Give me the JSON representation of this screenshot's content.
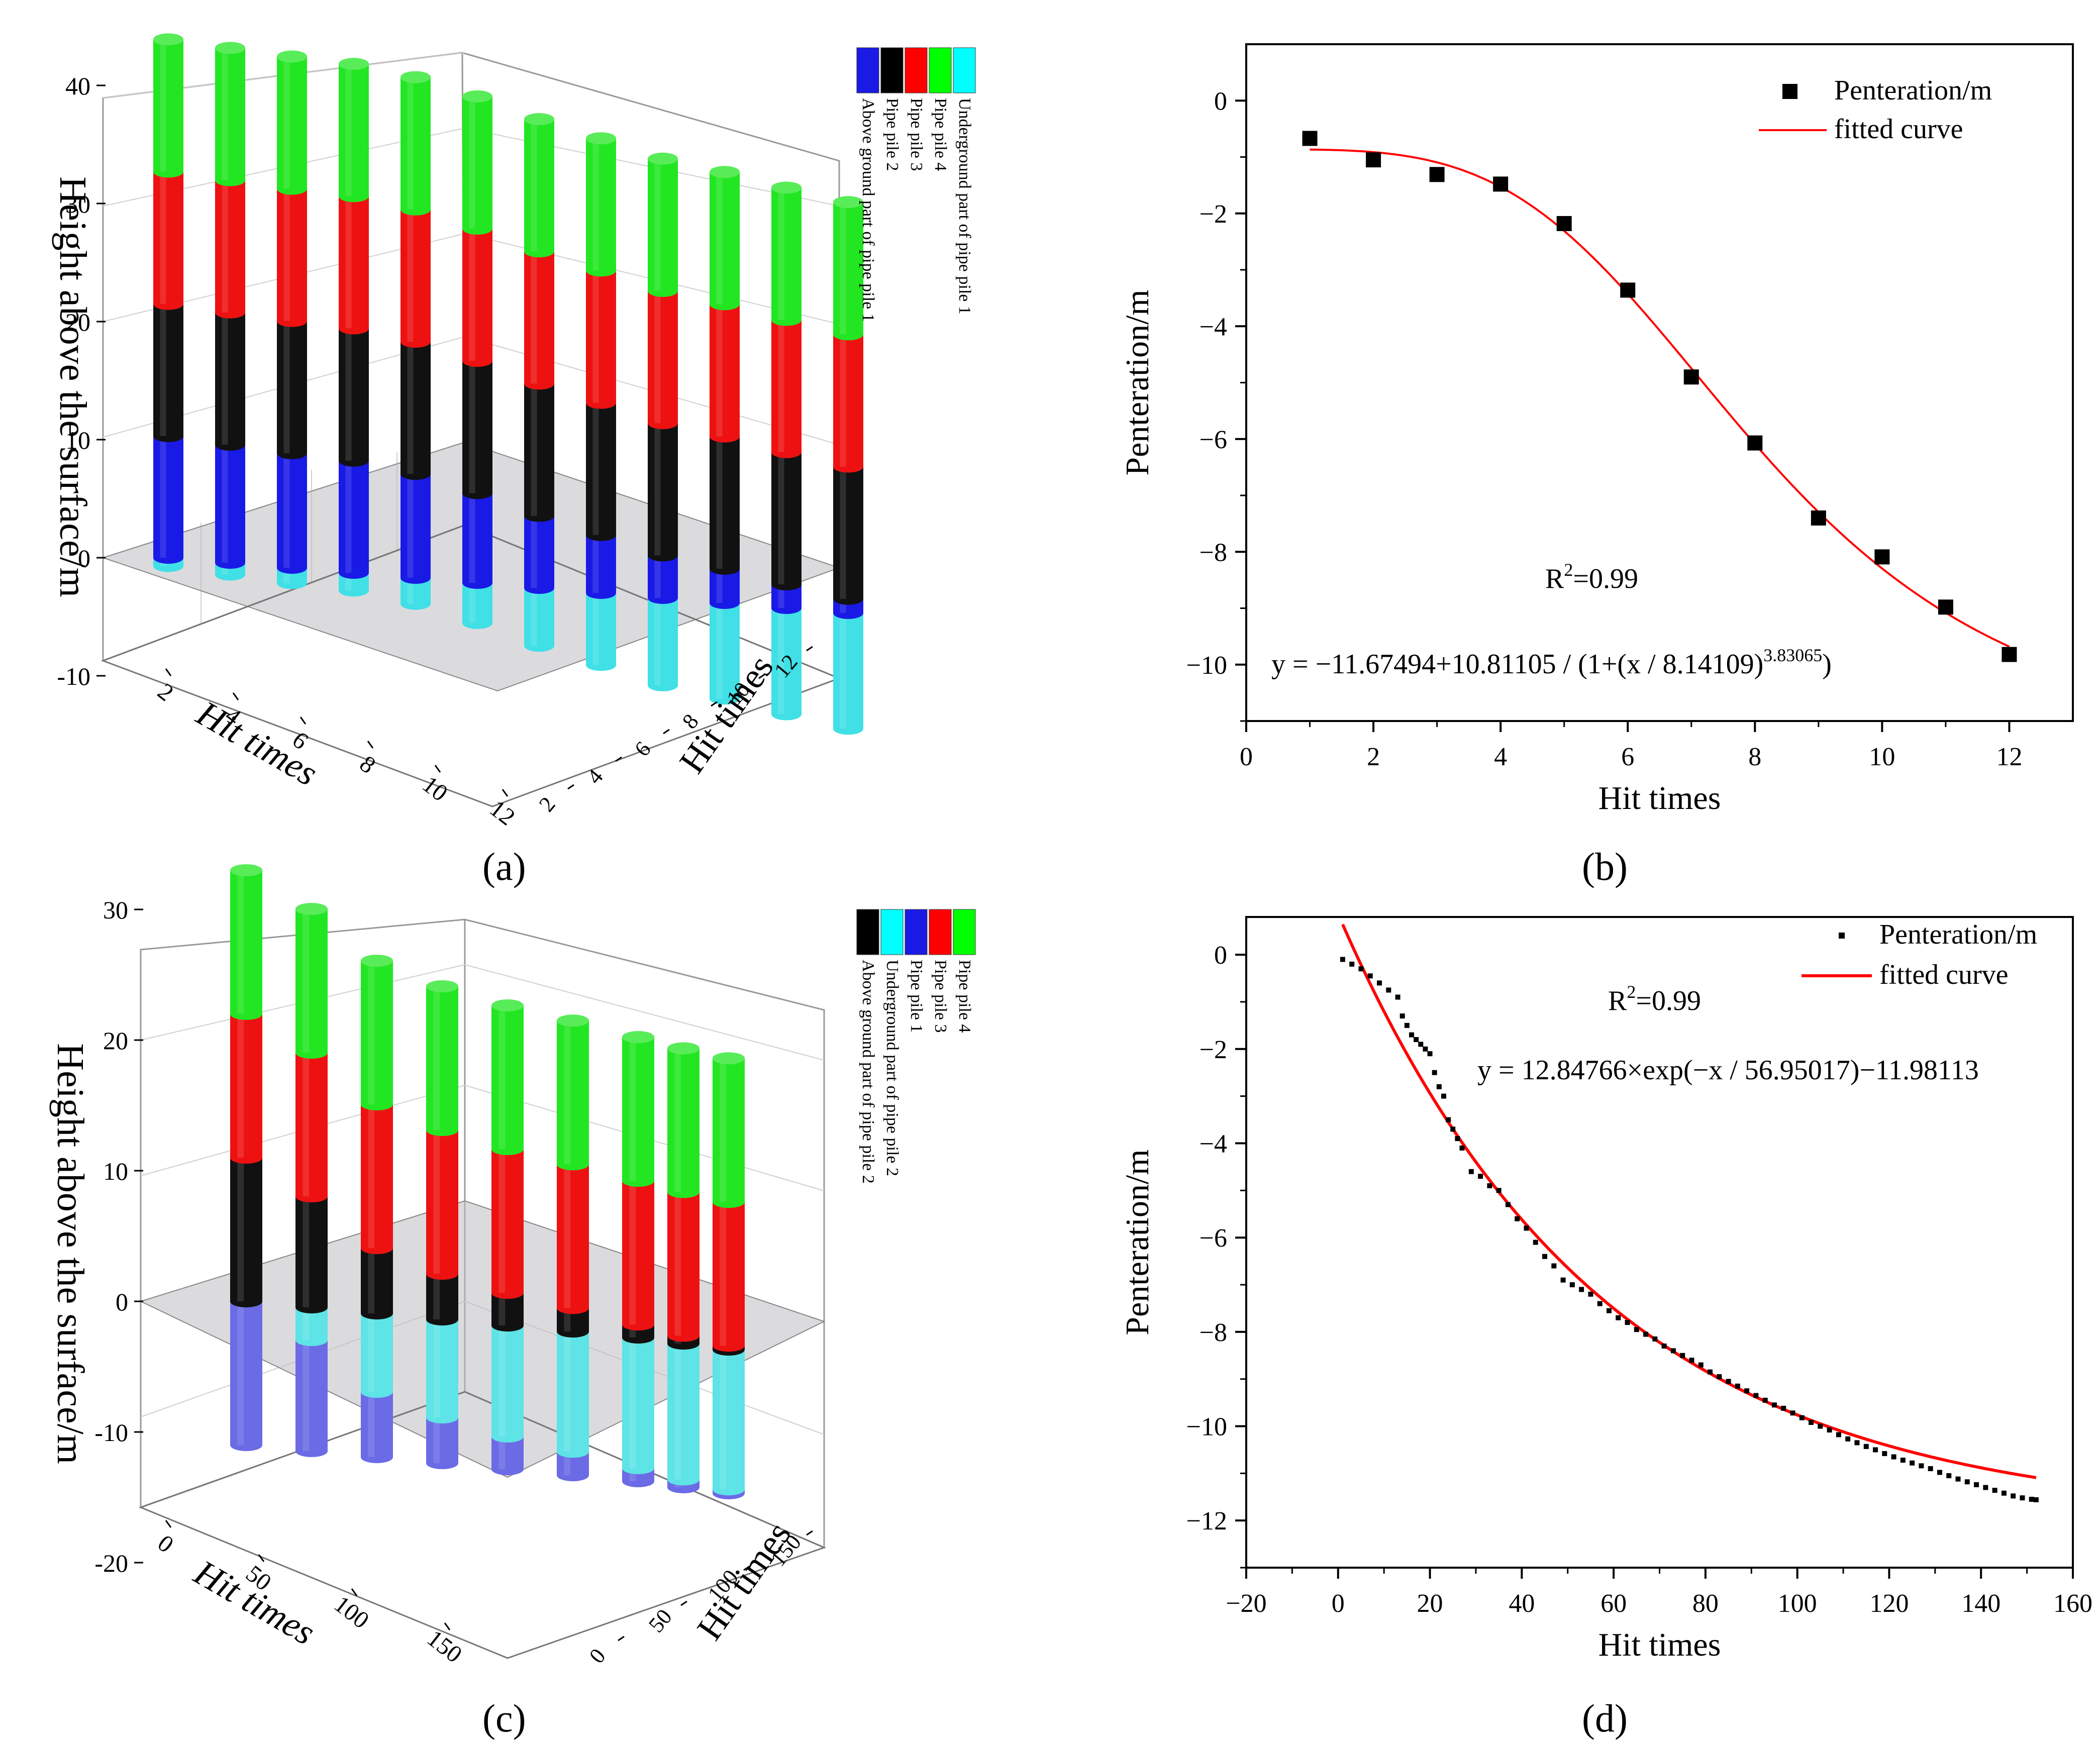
{
  "chart_data": [
    {
      "panel": "a",
      "caption": "(a)",
      "type": "bar3d",
      "ylabel": "Height above the surface/m",
      "xlabel": "Hit times",
      "zlabel": "Hit times",
      "y_ticks": [
        "40",
        "30",
        "20",
        "10",
        "0",
        "-10"
      ],
      "x_ticks": [
        "2",
        "4",
        "6",
        "8",
        "10",
        "12"
      ],
      "z_ticks": [
        "2",
        "4",
        "6",
        "8",
        "10",
        "12"
      ],
      "ylim": [
        -10,
        45
      ],
      "legend": [
        {
          "label": "Above ground part of pipe pile 1",
          "color": "#1a1ae6"
        },
        {
          "label": "Pipe pile 2",
          "color": "#000000"
        },
        {
          "label": "Pipe pile 3",
          "color": "#ff0000"
        },
        {
          "label": "Pipe pile 4",
          "color": "#00ff00"
        },
        {
          "label": "Underground part of pipe pile 1",
          "color": "#00ffff"
        }
      ],
      "hits": [
        1,
        2,
        3,
        4,
        5,
        6,
        7,
        8,
        9,
        10,
        11,
        12
      ],
      "stack_order": [
        "underground",
        "above_ground_pile1",
        "pile2",
        "pile3",
        "pile4"
      ],
      "segments": [
        {
          "underground": -0.7,
          "above": 10.3,
          "pile2": 11.2,
          "pile3": 11.2,
          "pile4": 11.2
        },
        {
          "underground": -1.0,
          "above": 10.0,
          "pile2": 11.2,
          "pile3": 11.2,
          "pile4": 11.2
        },
        {
          "underground": -1.3,
          "above": 9.7,
          "pile2": 11.2,
          "pile3": 11.2,
          "pile4": 11.2
        },
        {
          "underground": -1.5,
          "above": 9.5,
          "pile2": 11.2,
          "pile3": 11.2,
          "pile4": 11.2
        },
        {
          "underground": -2.2,
          "above": 8.8,
          "pile2": 11.2,
          "pile3": 11.2,
          "pile4": 11.2
        },
        {
          "underground": -3.4,
          "above": 7.6,
          "pile2": 11.2,
          "pile3": 11.2,
          "pile4": 11.2
        },
        {
          "underground": -4.9,
          "above": 6.1,
          "pile2": 11.2,
          "pile3": 11.2,
          "pile4": 11.2
        },
        {
          "underground": -6.1,
          "above": 4.9,
          "pile2": 11.2,
          "pile3": 11.2,
          "pile4": 11.2
        },
        {
          "underground": -7.4,
          "above": 3.6,
          "pile2": 11.2,
          "pile3": 11.2,
          "pile4": 11.2
        },
        {
          "underground": -8.1,
          "above": 2.9,
          "pile2": 11.2,
          "pile3": 11.2,
          "pile4": 11.2
        },
        {
          "underground": -9.0,
          "above": 2.0,
          "pile2": 11.2,
          "pile3": 11.2,
          "pile4": 11.2
        },
        {
          "underground": -9.8,
          "above": 1.2,
          "pile2": 11.2,
          "pile3": 11.2,
          "pile4": 11.2
        }
      ]
    },
    {
      "panel": "b",
      "caption": "(b)",
      "type": "scatter",
      "xlabel": "Hit times",
      "ylabel": "Penteration/m",
      "xlim": [
        0,
        13
      ],
      "ylim": [
        -11,
        1
      ],
      "x_ticks": [
        0,
        2,
        4,
        6,
        8,
        10,
        12
      ],
      "y_ticks": [
        0,
        -2,
        -4,
        -6,
        -8,
        -10
      ],
      "x": [
        1,
        2,
        3,
        4,
        5,
        6,
        7,
        8,
        9,
        10,
        11,
        12
      ],
      "y": [
        -0.67,
        -1.05,
        -1.31,
        -1.48,
        -2.18,
        -3.36,
        -4.9,
        -6.07,
        -7.4,
        -8.09,
        -8.98,
        -9.82
      ],
      "fit": {
        "A1": -11.67494,
        "A2": 10.81105,
        "x0": 8.14109,
        "p": 3.83065
      },
      "legend": [
        {
          "label": "Penteration/m",
          "marker": "square"
        },
        {
          "label": "fitted curve",
          "color": "#ff0000"
        }
      ],
      "r2_label": "R",
      "r2_sup": "2",
      "r2_value": "=0.99",
      "equation": "y = −11.67494+10.81105 / (1+(x / 8.14109)",
      "equation_sup": "3.83065",
      "equation_tail": ")"
    },
    {
      "panel": "c",
      "caption": "(c)",
      "type": "bar3d",
      "ylabel": "Height above the surface/m",
      "xlabel": "Hit times",
      "zlabel": "Hit times",
      "y_ticks": [
        "30",
        "20",
        "10",
        "0",
        "-10",
        "-20"
      ],
      "x_ticks": [
        "0",
        "50",
        "100",
        "150"
      ],
      "z_ticks": [
        "0",
        "50",
        "100",
        "150"
      ],
      "ylim": [
        -20,
        35
      ],
      "legend": [
        {
          "label": "Above ground part of pipe pile 2",
          "color": "#000000"
        },
        {
          "label": "Underground part of pipe pile 2",
          "color": "#00ffff"
        },
        {
          "label": "Pipe pile 1",
          "color": "#1a1ae6"
        },
        {
          "label": "Pipe pile 3",
          "color": "#ff0000"
        },
        {
          "label": "Pipe pile 4",
          "color": "#00ff00"
        }
      ],
      "segments": [
        {
          "pile1": -11.0,
          "under2": 0.0,
          "above2": 11.0,
          "pile3": 11.0,
          "pile4": 11.0
        },
        {
          "pile1": -8.5,
          "under2": -2.5,
          "above2": 8.5,
          "pile3": 11.0,
          "pile4": 11.0
        },
        {
          "pile1": -5.0,
          "under2": -6.0,
          "above2": 5.0,
          "pile3": 11.0,
          "pile4": 11.0
        },
        {
          "pile1": -3.5,
          "under2": -7.5,
          "above2": 3.5,
          "pile3": 11.0,
          "pile4": 11.0
        },
        {
          "pile1": -2.5,
          "under2": -8.5,
          "above2": 2.5,
          "pile3": 11.0,
          "pile4": 11.0
        },
        {
          "pile1": -1.8,
          "under2": -9.2,
          "above2": 1.8,
          "pile3": 11.0,
          "pile4": 11.0
        },
        {
          "pile1": -1.0,
          "under2": -10.0,
          "above2": 1.0,
          "pile3": 11.0,
          "pile4": 11.0
        },
        {
          "pile1": -0.6,
          "under2": -10.4,
          "above2": 0.6,
          "pile3": 11.0,
          "pile4": 11.0
        },
        {
          "pile1": -0.3,
          "under2": -10.7,
          "above2": 0.3,
          "pile3": 11.0,
          "pile4": 11.0
        }
      ]
    },
    {
      "panel": "d",
      "caption": "(d)",
      "type": "scatter",
      "xlabel": "Hit times",
      "ylabel": "Penteration/m",
      "xlim": [
        -20,
        160
      ],
      "ylim": [
        -13,
        0.8
      ],
      "x_ticks": [
        -20,
        0,
        20,
        40,
        60,
        80,
        100,
        120,
        140,
        160
      ],
      "y_ticks": [
        0,
        -2,
        -4,
        -6,
        -8,
        -10,
        -12
      ],
      "x_range": [
        1,
        152
      ],
      "data_points": [
        [
          1,
          -0.1
        ],
        [
          3,
          -0.2
        ],
        [
          5,
          -0.3
        ],
        [
          7,
          -0.45
        ],
        [
          9,
          -0.6
        ],
        [
          11,
          -0.75
        ],
        [
          13,
          -0.9
        ],
        [
          14,
          -1.3
        ],
        [
          15,
          -1.5
        ],
        [
          16,
          -1.7
        ],
        [
          17,
          -1.8
        ],
        [
          18,
          -1.9
        ],
        [
          19,
          -2.0
        ],
        [
          20,
          -2.1
        ],
        [
          21,
          -2.5
        ],
        [
          22,
          -2.8
        ],
        [
          23,
          -3.0
        ],
        [
          24,
          -3.5
        ],
        [
          25,
          -3.7
        ],
        [
          26,
          -3.9
        ],
        [
          27,
          -4.1
        ],
        [
          29,
          -4.6
        ],
        [
          31,
          -4.7
        ],
        [
          33,
          -4.9
        ],
        [
          35,
          -5.0
        ],
        [
          37,
          -5.3
        ],
        [
          39,
          -5.6
        ],
        [
          41,
          -5.8
        ],
        [
          43,
          -6.1
        ],
        [
          45,
          -6.4
        ],
        [
          47,
          -6.6
        ],
        [
          49,
          -6.9
        ],
        [
          51,
          -7.0
        ],
        [
          53,
          -7.1
        ],
        [
          55,
          -7.2
        ],
        [
          57,
          -7.4
        ],
        [
          59,
          -7.55
        ],
        [
          61,
          -7.7
        ],
        [
          63,
          -7.8
        ],
        [
          65,
          -7.95
        ],
        [
          67,
          -8.05
        ],
        [
          69,
          -8.15
        ],
        [
          71,
          -8.3
        ],
        [
          73,
          -8.4
        ],
        [
          75,
          -8.5
        ],
        [
          77,
          -8.6
        ],
        [
          79,
          -8.7
        ],
        [
          81,
          -8.85
        ],
        [
          83,
          -8.95
        ],
        [
          85,
          -9.05
        ],
        [
          87,
          -9.15
        ],
        [
          89,
          -9.25
        ],
        [
          91,
          -9.35
        ],
        [
          93,
          -9.45
        ],
        [
          95,
          -9.55
        ],
        [
          97,
          -9.62
        ],
        [
          99,
          -9.72
        ],
        [
          101,
          -9.82
        ],
        [
          103,
          -9.92
        ],
        [
          105,
          -10.0
        ],
        [
          107,
          -10.08
        ],
        [
          109,
          -10.18
        ],
        [
          111,
          -10.27
        ],
        [
          113,
          -10.35
        ],
        [
          115,
          -10.43
        ],
        [
          117,
          -10.5
        ],
        [
          119,
          -10.58
        ],
        [
          121,
          -10.65
        ],
        [
          123,
          -10.72
        ],
        [
          125,
          -10.78
        ],
        [
          127,
          -10.84
        ],
        [
          129,
          -10.9
        ],
        [
          131,
          -10.98
        ],
        [
          133,
          -11.05
        ],
        [
          135,
          -11.12
        ],
        [
          137,
          -11.18
        ],
        [
          139,
          -11.24
        ],
        [
          141,
          -11.3
        ],
        [
          143,
          -11.36
        ],
        [
          145,
          -11.42
        ],
        [
          147,
          -11.48
        ],
        [
          149,
          -11.52
        ],
        [
          151,
          -11.55
        ],
        [
          152,
          -11.56
        ]
      ],
      "fit": {
        "A": 12.84766,
        "t": 56.95017,
        "y0": -11.98113
      },
      "legend": [
        {
          "label": "Penteration/m",
          "marker": "small-square"
        },
        {
          "label": "fitted curve",
          "color": "#ff0000"
        }
      ],
      "r2_label": "R",
      "r2_sup": "2",
      "r2_value": "=0.99",
      "equation": "y = 12.84766×exp(−x / 56.95017)−11.98113"
    }
  ]
}
